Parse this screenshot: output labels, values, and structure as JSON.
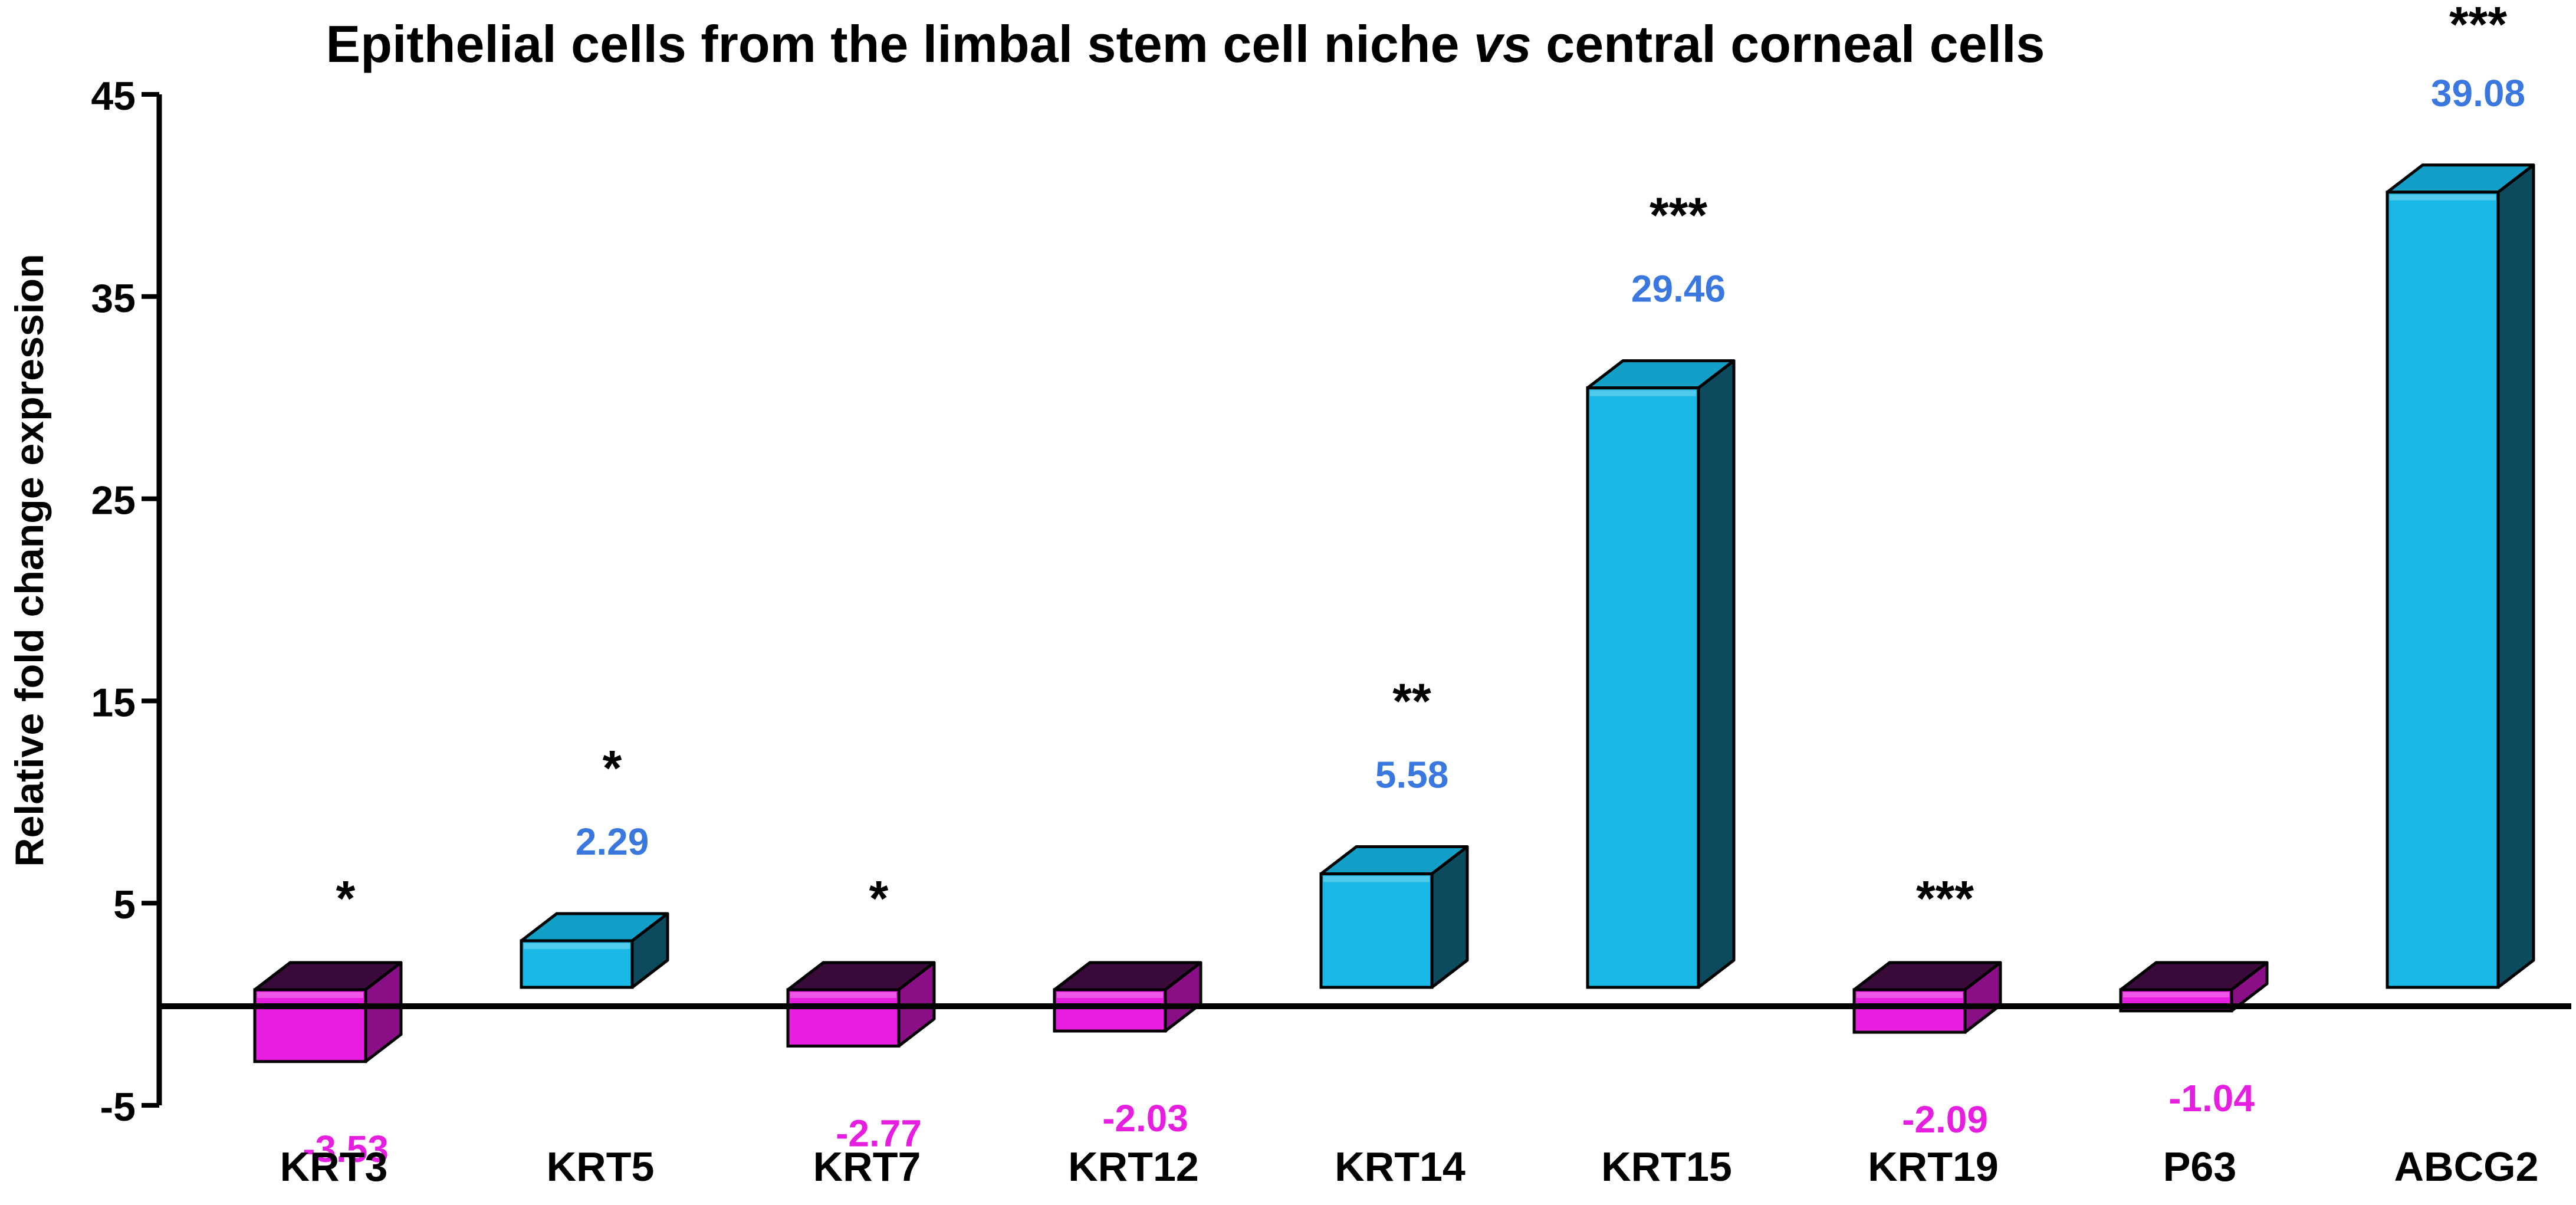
{
  "chart_data": {
    "type": "bar",
    "title_parts": [
      "Epithelial cells from the limbal stem cell niche ",
      "vs",
      " central corneal cells"
    ],
    "ylabel": "Relative fold change expression",
    "xlabel": "",
    "ylim": [
      -5,
      45
    ],
    "yticks": [
      "-5",
      "5",
      "15",
      "25",
      "35",
      "45"
    ],
    "categories": [
      "KRT3",
      "KRT5",
      "KRT7",
      "KRT12",
      "KRT14",
      "KRT15",
      "KRT19",
      "P63",
      "ABCG2"
    ],
    "values": [
      -3.53,
      2.29,
      -2.77,
      -2.03,
      5.58,
      29.46,
      -2.09,
      -1.04,
      39.08
    ],
    "value_labels": [
      "-3.53",
      "2.29",
      "-2.77",
      "-2.03",
      "5.58",
      "29.46",
      "-2.09",
      "-1.04",
      "39.08"
    ],
    "significance": [
      "*",
      "*",
      "*",
      "",
      "**",
      "***",
      "***",
      "",
      "***"
    ],
    "grid": false,
    "legend": "none",
    "colors": {
      "positive_front": "#19b8e6",
      "positive_side": "#0c4a5e",
      "positive_top": "#12a0c8",
      "negative_front": "#e81ee0",
      "negative_side": "#8a0f87",
      "negative_top": "#3a0a3a",
      "positive_label": "#3a78e0",
      "negative_label": "#e61ee0",
      "stars": "#000000"
    }
  }
}
